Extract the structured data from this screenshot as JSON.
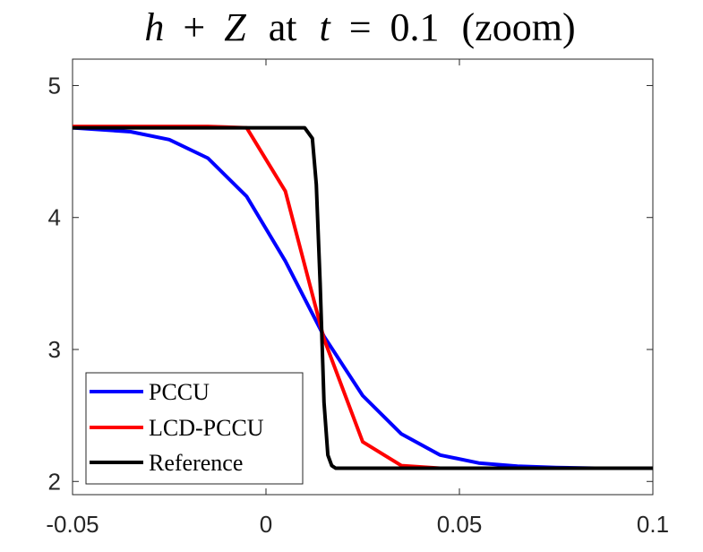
{
  "chart_data": {
    "type": "line",
    "title_parts": {
      "h": "h",
      "plus": "+",
      "z": "Z",
      "at": "at",
      "t": "t",
      "eq": "=",
      "value": "0.1",
      "zoom": "(zoom)"
    },
    "title": "h + Z at t = 0.1 (zoom)",
    "xlabel": "",
    "ylabel": "",
    "xlim": [
      -0.05,
      0.1
    ],
    "ylim": [
      1.9,
      5.2
    ],
    "xticks": [
      -0.05,
      0,
      0.05,
      0.1
    ],
    "xtick_labels": [
      "-0.05",
      "0",
      "0.05",
      "0.1"
    ],
    "yticks": [
      2,
      3,
      4,
      5
    ],
    "ytick_labels": [
      "2",
      "3",
      "4",
      "5"
    ],
    "legend_position": "bottom-left",
    "colors": {
      "pccu": "#0000ff",
      "lcd": "#ff0000",
      "reference": "#000000",
      "axis": "#262626"
    },
    "series": [
      {
        "name": "PCCU",
        "color": "#0000ff",
        "x": [
          -0.05,
          -0.035,
          -0.025,
          -0.015,
          -0.005,
          0.005,
          0.015,
          0.025,
          0.035,
          0.045,
          0.055,
          0.065,
          0.075,
          0.085,
          0.1
        ],
        "y": [
          4.68,
          4.65,
          4.59,
          4.45,
          4.16,
          3.67,
          3.1,
          2.65,
          2.36,
          2.2,
          2.14,
          2.115,
          2.105,
          2.1,
          2.1
        ]
      },
      {
        "name": "LCD-PCCU",
        "color": "#ff0000",
        "x": [
          -0.05,
          -0.015,
          -0.005,
          0.005,
          0.015,
          0.025,
          0.035,
          0.045,
          0.055,
          0.1
        ],
        "y": [
          4.69,
          4.69,
          4.68,
          4.2,
          3.08,
          2.3,
          2.12,
          2.1,
          2.1,
          2.1
        ]
      },
      {
        "name": "Reference",
        "color": "#000000",
        "x": [
          -0.05,
          0.01,
          0.012,
          0.013,
          0.014,
          0.015,
          0.016,
          0.017,
          0.018,
          0.02,
          0.1
        ],
        "y": [
          4.68,
          4.68,
          4.6,
          4.25,
          3.5,
          2.6,
          2.2,
          2.12,
          2.1,
          2.1,
          2.1
        ]
      }
    ]
  }
}
